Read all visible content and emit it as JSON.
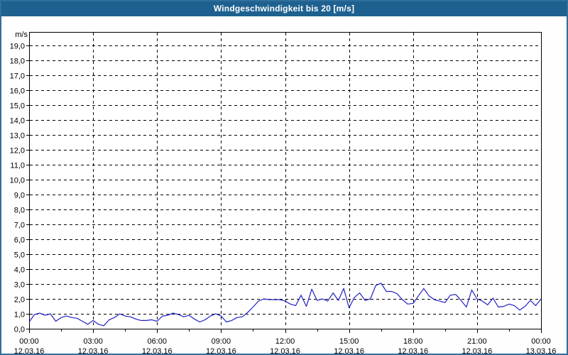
{
  "window": {
    "title": "Windgeschwindigkeit bis 20 [m/s]"
  },
  "colors": {
    "titlebar_bg": "#1e6190",
    "titlebar_text": "#ffffff",
    "window_border": "#2f6e9d",
    "plot_background": "#ffffff",
    "grid": "#000000",
    "axis": "#000000",
    "series_line": "#2121c4",
    "label_text": "#000000"
  },
  "chart_data": {
    "type": "line",
    "title": "Windgeschwindigkeit bis 20 [m/s]",
    "unit_label": "m/s",
    "grid": "dashed",
    "legend_position": "none",
    "ylim": [
      0,
      19.9
    ],
    "y_tick_step": 1.0,
    "y_tick_labels": [
      "0,0",
      "1,0",
      "2,0",
      "3,0",
      "4,0",
      "5,0",
      "6,0",
      "7,0",
      "8,0",
      "9,0",
      "10,0",
      "11,0",
      "12,0",
      "13,0",
      "14,0",
      "15,0",
      "16,0",
      "17,0",
      "18,0",
      "19,0"
    ],
    "xlim_hours": [
      0,
      24
    ],
    "x_major_step_hours": 3,
    "x_minor_step_hours": 1.5,
    "x_ticks": [
      {
        "hour": 0,
        "time": "00:00",
        "date": "12.03.16"
      },
      {
        "hour": 3,
        "time": "03:00",
        "date": "12.03.16"
      },
      {
        "hour": 6,
        "time": "06:00",
        "date": "12.03.16"
      },
      {
        "hour": 9,
        "time": "09:00",
        "date": "12.03.16"
      },
      {
        "hour": 12,
        "time": "12:00",
        "date": "12.03.16"
      },
      {
        "hour": 15,
        "time": "15:00",
        "date": "12.03.16"
      },
      {
        "hour": 18,
        "time": "18:00",
        "date": "12.03.16"
      },
      {
        "hour": 21,
        "time": "21:00",
        "date": "12.03.16"
      },
      {
        "hour": 24,
        "time": "00:00",
        "date": "13.03.16"
      }
    ],
    "series": [
      {
        "name": "Windgeschwindigkeit",
        "color": "#2121c4",
        "start_hour": 0,
        "interval_minutes": 15,
        "values": [
          0.45,
          0.95,
          1.05,
          0.9,
          1.0,
          0.5,
          0.75,
          0.85,
          0.75,
          0.7,
          0.5,
          0.3,
          0.55,
          0.3,
          0.2,
          0.6,
          0.75,
          1.0,
          0.85,
          0.8,
          0.65,
          0.55,
          0.55,
          0.6,
          0.5,
          0.85,
          0.9,
          1.05,
          0.95,
          0.8,
          0.9,
          0.65,
          0.45,
          0.6,
          0.85,
          1.0,
          0.85,
          0.45,
          0.55,
          0.75,
          0.8,
          1.1,
          1.45,
          1.85,
          2.0,
          1.95,
          1.95,
          1.95,
          1.85,
          1.65,
          1.55,
          2.25,
          1.5,
          2.65,
          1.9,
          2.0,
          1.85,
          2.4,
          1.9,
          2.7,
          1.4,
          2.1,
          2.4,
          1.9,
          2.0,
          2.9,
          3.05,
          2.5,
          2.5,
          2.35,
          1.95,
          1.65,
          1.7,
          2.2,
          2.7,
          2.2,
          1.95,
          1.85,
          1.75,
          2.25,
          2.3,
          1.9,
          1.45,
          2.6,
          2.0,
          1.85,
          1.6,
          2.05,
          1.45,
          1.5,
          1.65,
          1.55,
          1.25,
          1.5,
          1.9,
          1.55,
          2.0
        ]
      }
    ]
  }
}
